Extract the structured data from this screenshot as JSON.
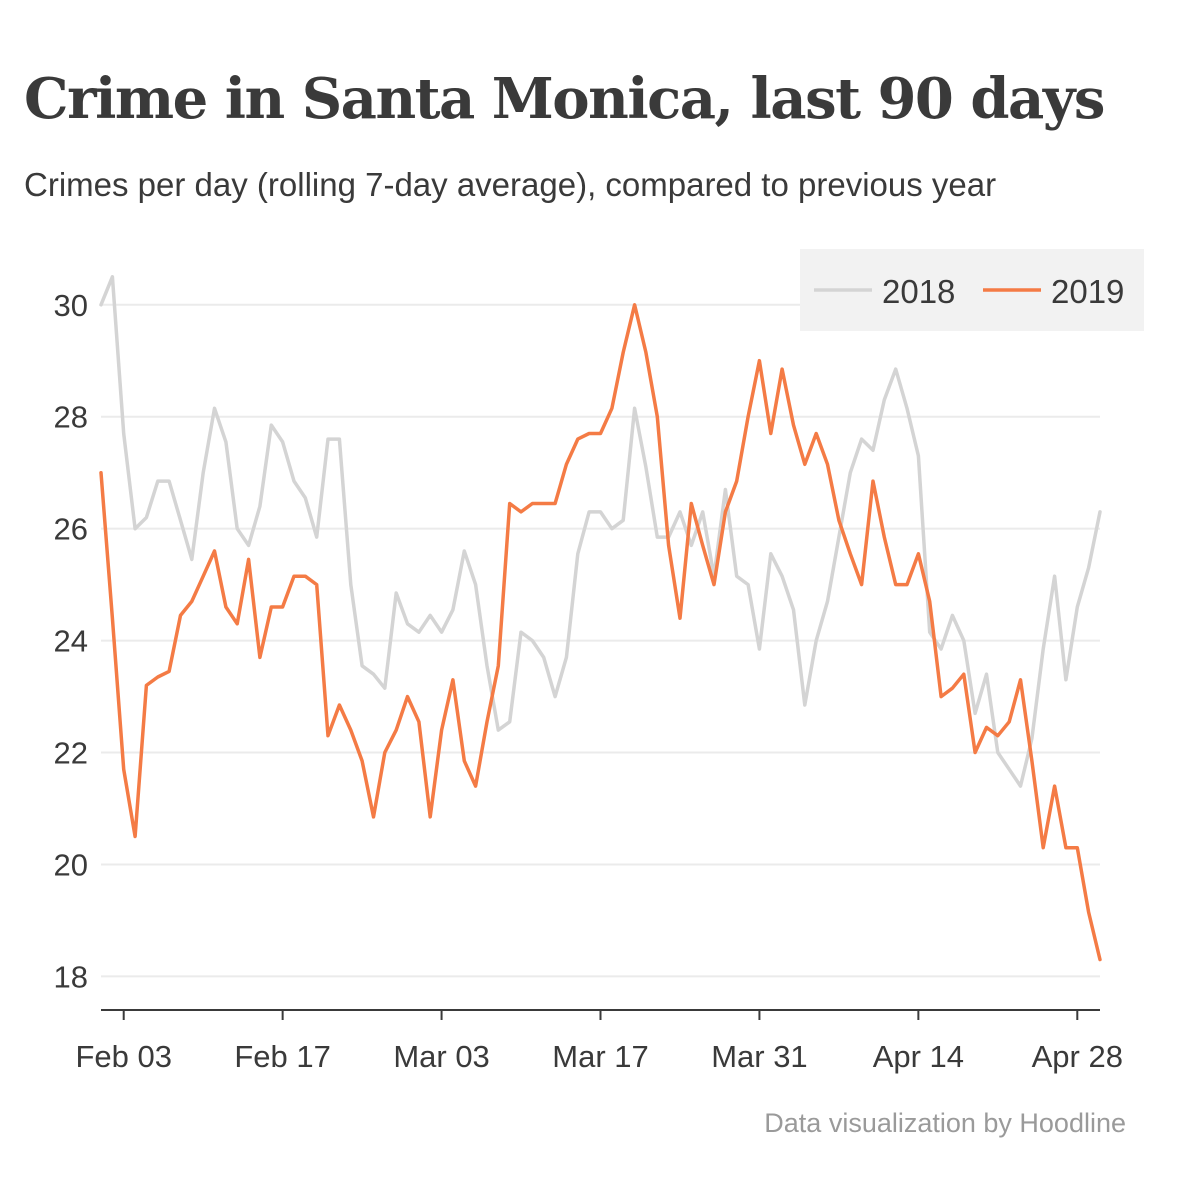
{
  "header": {
    "title": "Crime in Santa Monica, last 90 days",
    "subtitle": "Crimes per day (rolling 7-day average), compared to previous year"
  },
  "footer": {
    "credit": "Data visualization by Hoodline"
  },
  "colors": {
    "series_2018": "#d4d4d4",
    "series_2019": "#f47b45",
    "grid": "#ebebeb",
    "legend_bg": "#f2f2f2",
    "text": "#3a3a3a"
  },
  "chart_data": {
    "type": "line",
    "title": "Crime in Santa Monica, last 90 days",
    "subtitle": "Crimes per day (rolling 7-day average), compared to previous year",
    "xlabel": "",
    "ylabel": "",
    "x_start_date": "2019-02-01",
    "x_ticks": [
      {
        "label": "Feb 03",
        "day": 2
      },
      {
        "label": "Feb 17",
        "day": 16
      },
      {
        "label": "Mar 03",
        "day": 30
      },
      {
        "label": "Mar 17",
        "day": 44
      },
      {
        "label": "Mar 31",
        "day": 58
      },
      {
        "label": "Apr 14",
        "day": 72
      },
      {
        "label": "Apr 28",
        "day": 86
      }
    ],
    "yticks": [
      18,
      20,
      22,
      24,
      26,
      28,
      30
    ],
    "ylim": [
      17.4,
      30.8
    ],
    "xlim": [
      0,
      88
    ],
    "grid": true,
    "legend": "top-right",
    "series": [
      {
        "name": "2018",
        "color": "#d4d4d4",
        "values": [
          30.0,
          30.5,
          27.7,
          26.0,
          26.2,
          26.85,
          26.85,
          26.15,
          25.45,
          27.0,
          28.15,
          27.55,
          26.0,
          25.7,
          26.4,
          27.85,
          27.55,
          26.85,
          26.55,
          25.85,
          27.6,
          27.6,
          25.0,
          23.55,
          23.4,
          23.15,
          24.85,
          24.3,
          24.15,
          24.45,
          24.15,
          24.55,
          25.6,
          25.0,
          23.55,
          22.4,
          22.55,
          24.15,
          24.0,
          23.7,
          23.0,
          23.7,
          25.55,
          26.3,
          26.3,
          26.0,
          26.15,
          28.15,
          27.1,
          25.85,
          25.85,
          26.3,
          25.7,
          26.3,
          25.15,
          26.7,
          25.15,
          25.0,
          23.85,
          25.55,
          25.15,
          24.55,
          22.85,
          24.0,
          24.7,
          25.85,
          27.0,
          27.6,
          27.4,
          28.3,
          28.85,
          28.15,
          27.3,
          24.15,
          23.85,
          24.45,
          24.0,
          22.7,
          23.4,
          22.0,
          21.7,
          21.4,
          22.25,
          23.85,
          25.15,
          23.3,
          24.6,
          25.3,
          26.3
        ]
      },
      {
        "name": "2019",
        "color": "#f47b45",
        "values": [
          27.0,
          24.4,
          21.7,
          20.5,
          23.2,
          23.35,
          23.45,
          24.45,
          24.7,
          25.15,
          25.6,
          24.6,
          24.3,
          25.45,
          23.7,
          24.6,
          24.6,
          25.15,
          25.15,
          25.0,
          22.3,
          22.85,
          22.4,
          21.85,
          20.85,
          22.0,
          22.4,
          23.0,
          22.55,
          20.85,
          22.4,
          23.3,
          21.85,
          21.4,
          22.55,
          23.55,
          26.45,
          26.3,
          26.45,
          26.45,
          26.45,
          27.15,
          27.6,
          27.7,
          27.7,
          28.15,
          29.15,
          30.0,
          29.15,
          28.0,
          25.7,
          24.4,
          26.45,
          25.7,
          25.0,
          26.3,
          26.85,
          28.0,
          29.0,
          27.7,
          28.85,
          27.85,
          27.15,
          27.7,
          27.15,
          26.15,
          25.55,
          25.0,
          26.85,
          25.85,
          25.0,
          25.0,
          25.55,
          24.7,
          23.0,
          23.15,
          23.4,
          22.0,
          22.45,
          22.3,
          22.55,
          23.3,
          21.85,
          20.3,
          21.4,
          20.3,
          20.3,
          19.15,
          18.3
        ]
      }
    ]
  }
}
